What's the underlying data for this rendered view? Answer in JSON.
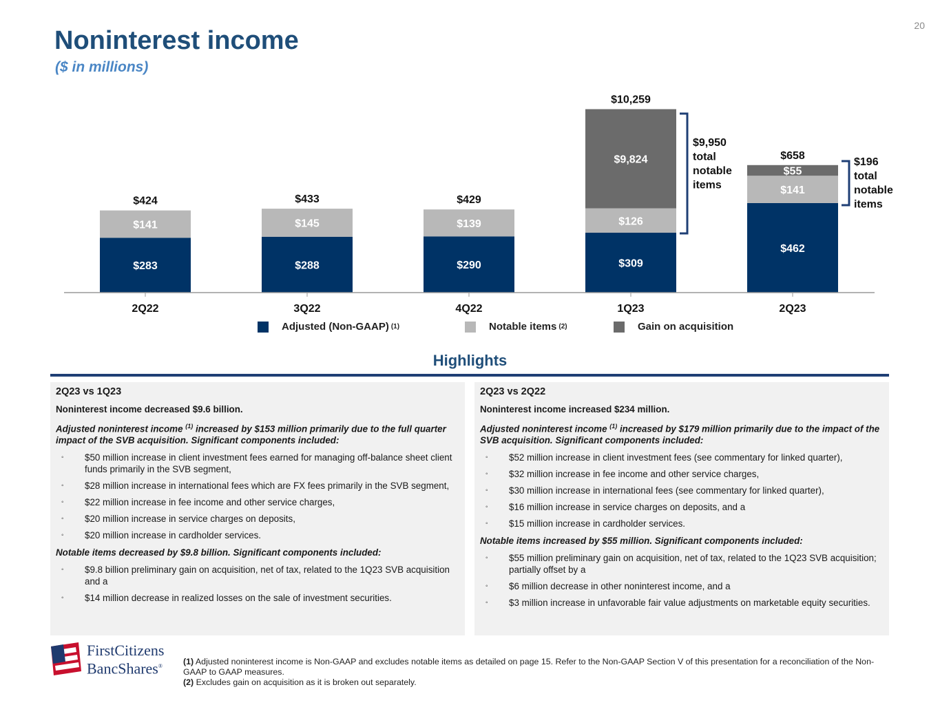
{
  "page": {
    "number": "20",
    "title": "Noninterest income",
    "subtitle": "($ in millions)"
  },
  "colors": {
    "title": "#1f4e79",
    "subtitle": "#4a86c5",
    "adjusted": "#003366",
    "notable": "#b8b8b8",
    "gain": "#6b6b6b",
    "bracket": "#1f3f75",
    "panel_bg": "#f1f1f1"
  },
  "chart_data": {
    "type": "bar",
    "stacked": true,
    "title": "Noninterest income",
    "units": "$ in millions",
    "categories": [
      "2Q22",
      "3Q22",
      "4Q22",
      "1Q23",
      "2Q23"
    ],
    "series": [
      {
        "name": "Adjusted (Non-GAAP)",
        "color": "#003366",
        "values": [
          283,
          288,
          290,
          309,
          462
        ],
        "labels": [
          "$283",
          "$288",
          "$290",
          "$309",
          "$462"
        ]
      },
      {
        "name": "Notable items",
        "color": "#b8b8b8",
        "values": [
          141,
          145,
          139,
          126,
          141
        ],
        "labels": [
          "$141",
          "$145",
          "$139",
          "$126",
          "$141"
        ]
      },
      {
        "name": "Gain on acquisition",
        "color": "#6b6b6b",
        "values": [
          0,
          0,
          0,
          9824,
          55
        ],
        "labels": [
          "",
          "",
          "",
          "$9,824",
          "$55"
        ]
      }
    ],
    "totals": [
      424,
      433,
      429,
      10259,
      658
    ],
    "total_labels": [
      "$424",
      "$433",
      "$429",
      "$10,259",
      "$658"
    ],
    "axis_break_note": "1Q23 gain on acquisition bar not drawn to scale",
    "annotations": [
      {
        "category": "1Q23",
        "lines": [
          "$9,950",
          "total",
          "notable",
          "items"
        ]
      },
      {
        "category": "2Q23",
        "lines": [
          "$196",
          "total",
          "notable",
          "items"
        ]
      }
    ],
    "legend": [
      {
        "label": "Adjusted (Non-GAAP)",
        "sup": "(1)",
        "color": "#003366"
      },
      {
        "label": "Notable items",
        "sup": "(2)",
        "color": "#b8b8b8"
      },
      {
        "label": "Gain on acquisition",
        "sup": "",
        "color": "#6b6b6b"
      }
    ]
  },
  "highlights": {
    "title": "Highlights",
    "left": {
      "heading": "2Q23 vs 1Q23",
      "summary": "Noninterest income decreased $9.6 billion.",
      "adjusted_pre": "Adjusted noninterest income ",
      "adjusted_sup": "(1)",
      "adjusted_post": " increased by $153 million primarily due to the full quarter impact of the SVB acquisition. Significant components included:",
      "adjusted_items": [
        "$50 million increase in client investment fees earned for managing off-balance sheet client funds primarily in the SVB segment,",
        "$28 million increase in international fees which are FX fees primarily in the SVB segment,",
        "$22 million increase in fee income and other service charges,",
        "$20 million increase in service charges on deposits,",
        "$20 million increase in cardholder services."
      ],
      "notable_heading": "Notable items decreased by $9.8 billion. Significant components included:",
      "notable_items": [
        "$9.8 billion preliminary gain on acquisition, net of tax, related to the 1Q23 SVB acquisition and a",
        "$14 million decrease in realized losses on the sale of investment securities."
      ]
    },
    "right": {
      "heading": "2Q23 vs 2Q22",
      "summary": "Noninterest income increased $234 million.",
      "adjusted_pre": "Adjusted noninterest income ",
      "adjusted_sup": "(1)",
      "adjusted_post": " increased by $179 million primarily due to the impact of the SVB acquisition. Significant components included:",
      "adjusted_items": [
        "$52 million increase in client investment fees (see commentary for linked quarter),",
        "$32 million increase in fee income and other service charges,",
        "$30 million increase in international fees (see commentary for linked quarter),",
        "$16 million increase in service charges on deposits, and a",
        "$15 million increase in cardholder services."
      ],
      "notable_heading": "Notable items increased by $55 million. Significant components included:",
      "notable_items": [
        "$55 million preliminary gain on acquisition, net of tax, related to the 1Q23 SVB acquisition; partially offset by a",
        "$6 million decrease in other noninterest income, and a",
        "$3 million increase in unfavorable fair value adjustments on marketable equity securities."
      ]
    }
  },
  "logo": {
    "line1": "FirstCitizens",
    "line2": "BancShares",
    "mark": "®",
    "icon": "flag-logo-icon"
  },
  "footnotes": [
    {
      "marker": "(1)",
      "text": " Adjusted noninterest income is Non-GAAP and excludes notable items as detailed on page 15. Refer to the Non-GAAP Section V of this presentation for a reconciliation of the Non-GAAP to GAAP measures."
    },
    {
      "marker": "(2)",
      "text": " Excludes gain on acquisition as it is broken out separately."
    }
  ],
  "bullet_glyph": "◦"
}
